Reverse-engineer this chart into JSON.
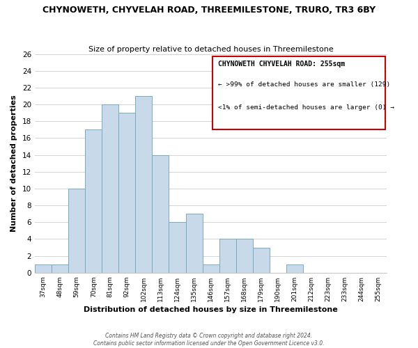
{
  "title": "CHYNOWETH, CHYVELAH ROAD, THREEMILESTONE, TRURO, TR3 6BY",
  "subtitle": "Size of property relative to detached houses in Threemilestone",
  "xlabel": "Distribution of detached houses by size in Threemilestone",
  "ylabel": "Number of detached properties",
  "bar_color": "#c8daea",
  "bar_edge_color": "#7aaabf",
  "bin_labels": [
    "37sqm",
    "48sqm",
    "59sqm",
    "70sqm",
    "81sqm",
    "92sqm",
    "102sqm",
    "113sqm",
    "124sqm",
    "135sqm",
    "146sqm",
    "157sqm",
    "168sqm",
    "179sqm",
    "190sqm",
    "201sqm",
    "212sqm",
    "223sqm",
    "233sqm",
    "244sqm",
    "255sqm"
  ],
  "bar_heights": [
    1,
    1,
    10,
    17,
    20,
    19,
    21,
    14,
    6,
    7,
    1,
    4,
    4,
    3,
    0,
    1,
    0,
    0,
    0,
    0,
    0
  ],
  "ylim": [
    0,
    26
  ],
  "yticks": [
    0,
    2,
    4,
    6,
    8,
    10,
    12,
    14,
    16,
    18,
    20,
    22,
    24,
    26
  ],
  "annotation_title": "CHYNOWETH CHYVELAH ROAD: 255sqm",
  "annotation_line1": "← >99% of detached houses are smaller (129)",
  "annotation_line2": "<1% of semi-detached houses are larger (0) →",
  "annotation_box_color": "#ffffff",
  "annotation_box_edge_color": "#cc0000",
  "footer1": "Contains HM Land Registry data © Crown copyright and database right 2024.",
  "footer2": "Contains public sector information licensed under the Open Government Licence v3.0.",
  "background_color": "#ffffff",
  "grid_color": "#cccccc"
}
